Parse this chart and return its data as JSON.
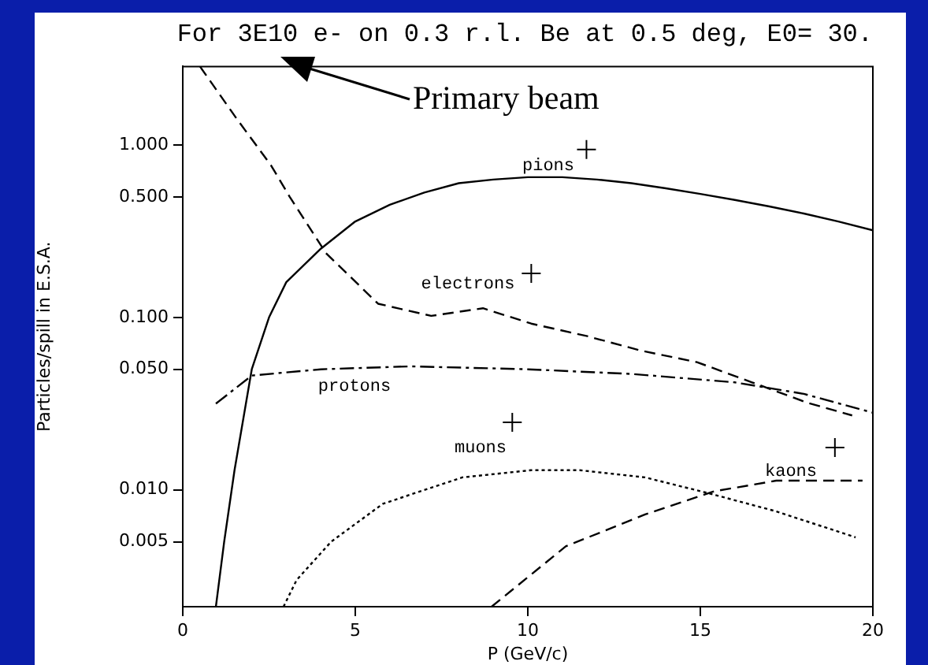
{
  "chart_data": {
    "type": "line",
    "title": "For 3E10 e- on 0.3 r.l. Be at 0.5 deg, E0= 30.",
    "xlabel": "P (GeV/c)",
    "ylabel": "Particles/spill in E.S.A.",
    "xlim": [
      0,
      20
    ],
    "xticks": [
      0,
      5,
      10,
      15,
      20
    ],
    "ylim": [
      0.0021,
      2.85
    ],
    "yticks": [
      {
        "value": 1,
        "label": "1.000"
      },
      {
        "value": 0.5,
        "label": "0.500"
      },
      {
        "value": 0.1,
        "label": "0.100"
      },
      {
        "value": 0.05,
        "label": "0.050"
      },
      {
        "value": 0.01,
        "label": "0.010"
      },
      {
        "value": 0.005,
        "label": "0.005"
      }
    ],
    "log": "y",
    "grid": false,
    "legend": false,
    "marker": "none",
    "series": [
      {
        "color": "#000000",
        "line_style": "solid",
        "x": [
          0.96,
          1.2,
          1.5,
          2,
          2.5,
          3,
          4,
          5,
          6,
          7,
          8,
          9,
          10,
          11,
          12,
          13,
          14,
          15,
          16,
          17,
          18,
          19,
          20
        ],
        "values": [
          0.0021,
          0.005,
          0.013,
          0.05,
          0.1,
          0.16,
          0.25,
          0.36,
          0.45,
          0.53,
          0.6,
          0.63,
          0.65,
          0.65,
          0.63,
          0.6,
          0.56,
          0.52,
          0.48,
          0.44,
          0.4,
          0.36,
          0.32
        ]
      },
      {
        "color": "#000000",
        "line_style": "dashed",
        "x": [
          0.5,
          1.55,
          2.56,
          3.1,
          4.15,
          5.66,
          7.2,
          8.7,
          10.1,
          11.7,
          13.3,
          14.9,
          16.5,
          18.1,
          19.4
        ],
        "values": [
          2.85,
          1.43,
          0.76,
          0.5,
          0.236,
          0.12,
          0.102,
          0.113,
          0.092,
          0.078,
          0.064,
          0.055,
          0.042,
          0.032,
          0.027
        ]
      },
      {
        "color": "#000000",
        "line_style": "dashdot",
        "x": [
          0.96,
          2,
          4,
          6.6,
          10,
          13,
          16,
          18,
          20
        ],
        "values": [
          0.0316,
          0.046,
          0.05,
          0.052,
          0.05,
          0.047,
          0.042,
          0.036,
          0.028
        ]
      },
      {
        "color": "#000000",
        "line_style": "dotted",
        "x": [
          2.92,
          3.3,
          4.3,
          5.8,
          8.1,
          10.1,
          11.5,
          13.4,
          15.2,
          17.2,
          19.5
        ],
        "values": [
          0.0021,
          0.003,
          0.005,
          0.0083,
          0.0118,
          0.013,
          0.013,
          0.0118,
          0.0096,
          0.0075,
          0.0053
        ]
      },
      {
        "color": "#000000",
        "line_style": "dashed",
        "x": [
          8.95,
          11.1,
          13.4,
          15.4,
          17.2,
          19.7
        ],
        "values": [
          0.0021,
          0.0047,
          0.0072,
          0.0098,
          0.0113,
          0.0113
        ]
      },
      {
        "type": "scatter",
        "color": "#000000",
        "marker": "cross",
        "x": [
          11.7,
          10.1,
          9.55,
          18.9
        ],
        "values": [
          0.94,
          0.18,
          0.0246,
          0.0176
        ]
      }
    ],
    "annotations": [
      "pions",
      "electrons",
      "protons",
      "muons",
      "kaons",
      "Primary beam"
    ]
  }
}
